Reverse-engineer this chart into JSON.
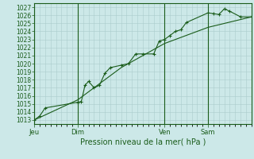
{
  "bg_color": "#cce8e8",
  "grid_color": "#aacccc",
  "line_color": "#1a5c1a",
  "ylabel": "Pression niveau de la mer( hPa )",
  "ylim": [
    1012.5,
    1027.5
  ],
  "yticks": [
    1013,
    1014,
    1015,
    1016,
    1017,
    1018,
    1019,
    1020,
    1021,
    1022,
    1023,
    1024,
    1025,
    1026,
    1027
  ],
  "day_ticks": [
    {
      "label": "Jeu",
      "x": 0.0
    },
    {
      "label": "Dim",
      "x": 24.0
    },
    {
      "label": "Ven",
      "x": 72.0
    },
    {
      "label": "Sam",
      "x": 96.0
    }
  ],
  "xlim": [
    0,
    120.0
  ],
  "line1_x": [
    0,
    3,
    6,
    24,
    26,
    28,
    30,
    33,
    36,
    39,
    42,
    48,
    52,
    56,
    60,
    66,
    69,
    72,
    75,
    78,
    81,
    84,
    96,
    99,
    102,
    105,
    108,
    114,
    120
  ],
  "line1_y": [
    1013.0,
    1013.5,
    1014.5,
    1015.2,
    1015.3,
    1017.3,
    1017.8,
    1017.0,
    1017.3,
    1018.8,
    1019.5,
    1019.8,
    1020.0,
    1021.2,
    1021.2,
    1021.2,
    1022.8,
    1023.0,
    1023.5,
    1024.0,
    1024.2,
    1025.1,
    1026.3,
    1026.2,
    1026.1,
    1026.8,
    1026.5,
    1025.8,
    1025.8
  ],
  "line2_x": [
    0,
    24,
    48,
    72,
    96,
    120
  ],
  "line2_y": [
    1013.0,
    1015.5,
    1019.5,
    1022.5,
    1024.5,
    1025.8
  ],
  "vline_positions": [
    0.0,
    24.0,
    72.0,
    96.0
  ],
  "font_size": 5.5,
  "label_font_size": 7.0,
  "tick_font_size": 6.0
}
